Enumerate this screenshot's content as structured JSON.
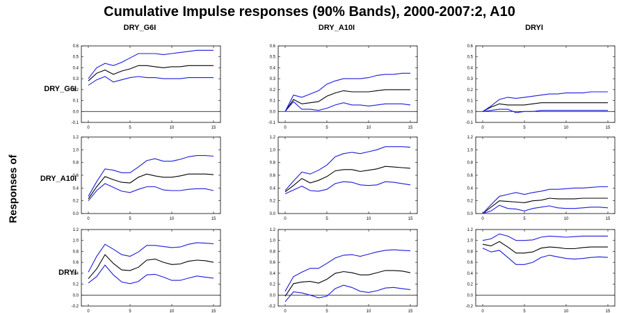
{
  "title": "Cumulative Impulse responses (90% Bands), 2000-2007:2, A10",
  "side_label": "Responses of",
  "column_titles": [
    "DRY_G6I",
    "DRY_A10I",
    "DRYI"
  ],
  "row_labels": [
    "DRY_G6I",
    "DRY_A10I",
    "DRYI"
  ],
  "colors": {
    "point": "#000000",
    "band": "#1a1adc",
    "frame": "#000000"
  },
  "chart_data": [
    {
      "type": "line",
      "response": "DRY_G6I",
      "shock": "DRY_G6I",
      "x": [
        0,
        1,
        2,
        3,
        4,
        5,
        6,
        7,
        8,
        9,
        10,
        11,
        12,
        13,
        14,
        15
      ],
      "xticks": [
        0,
        5,
        10,
        15
      ],
      "ylim": [
        -0.1,
        0.6
      ],
      "yticks": [
        "-0.1",
        "0.0",
        "0.1",
        "0.2",
        "0.3",
        "0.4",
        "0.5",
        "0.6"
      ],
      "series": [
        {
          "values": [
            0.28,
            0.35,
            0.38,
            0.34,
            0.37,
            0.39,
            0.42,
            0.42,
            0.41,
            0.4,
            0.41,
            0.41,
            0.42,
            0.42,
            0.42,
            0.42
          ]
        },
        {
          "values": [
            0.3,
            0.4,
            0.44,
            0.42,
            0.45,
            0.49,
            0.53,
            0.53,
            0.53,
            0.52,
            0.53,
            0.54,
            0.55,
            0.56,
            0.56,
            0.56
          ]
        },
        {
          "values": [
            0.24,
            0.29,
            0.32,
            0.27,
            0.29,
            0.31,
            0.32,
            0.31,
            0.31,
            0.3,
            0.3,
            0.3,
            0.31,
            0.31,
            0.31,
            0.31
          ]
        }
      ]
    },
    {
      "type": "line",
      "response": "DRY_G6I",
      "shock": "DRY_A10I",
      "x": [
        0,
        1,
        2,
        3,
        4,
        5,
        6,
        7,
        8,
        9,
        10,
        11,
        12,
        13,
        14,
        15
      ],
      "xticks": [
        0,
        5,
        10,
        15
      ],
      "ylim": [
        -0.1,
        0.6
      ],
      "yticks": [
        "-0.1",
        "0.0",
        "0.1",
        "0.2",
        "0.3",
        "0.4",
        "0.5",
        "0.6"
      ],
      "series": [
        {
          "values": [
            0.0,
            0.11,
            0.07,
            0.08,
            0.09,
            0.14,
            0.17,
            0.19,
            0.18,
            0.18,
            0.18,
            0.19,
            0.2,
            0.2,
            0.2,
            0.2
          ]
        },
        {
          "values": [
            0.0,
            0.15,
            0.13,
            0.16,
            0.19,
            0.25,
            0.28,
            0.3,
            0.3,
            0.3,
            0.31,
            0.33,
            0.34,
            0.34,
            0.35,
            0.35
          ]
        },
        {
          "values": [
            0.0,
            0.09,
            0.02,
            0.02,
            0.01,
            0.03,
            0.06,
            0.08,
            0.06,
            0.06,
            0.05,
            0.06,
            0.07,
            0.07,
            0.07,
            0.06
          ]
        }
      ]
    },
    {
      "type": "line",
      "response": "DRY_G6I",
      "shock": "DRYI",
      "x": [
        0,
        1,
        2,
        3,
        4,
        5,
        6,
        7,
        8,
        9,
        10,
        11,
        12,
        13,
        14,
        15
      ],
      "xticks": [
        0,
        5,
        10,
        15
      ],
      "ylim": [
        -0.1,
        0.6
      ],
      "yticks": [
        "-0.1",
        "0.0",
        "0.1",
        "0.2",
        "0.3",
        "0.4",
        "0.5",
        "0.6"
      ],
      "series": [
        {
          "values": [
            0.0,
            0.04,
            0.07,
            0.06,
            0.06,
            0.06,
            0.07,
            0.08,
            0.08,
            0.08,
            0.08,
            0.08,
            0.08,
            0.08,
            0.08,
            0.08
          ]
        },
        {
          "values": [
            0.0,
            0.05,
            0.11,
            0.13,
            0.12,
            0.13,
            0.14,
            0.15,
            0.16,
            0.16,
            0.17,
            0.17,
            0.17,
            0.18,
            0.18,
            0.18
          ]
        },
        {
          "values": [
            0.0,
            0.01,
            0.02,
            0.02,
            -0.01,
            0.0,
            0.0,
            0.01,
            0.01,
            0.01,
            0.01,
            0.01,
            0.01,
            0.01,
            0.01,
            0.01
          ]
        }
      ]
    },
    {
      "type": "line",
      "response": "DRY_A10I",
      "shock": "DRY_G6I",
      "x": [
        0,
        1,
        2,
        3,
        4,
        5,
        6,
        7,
        8,
        9,
        10,
        11,
        12,
        13,
        14,
        15
      ],
      "xticks": [
        0,
        5,
        10,
        15
      ],
      "ylim": [
        0.0,
        1.2
      ],
      "yticks": [
        "0.0",
        "0.2",
        "0.4",
        "0.6",
        "0.8",
        "1.0",
        "1.2"
      ],
      "series": [
        {
          "values": [
            0.23,
            0.42,
            0.58,
            0.53,
            0.49,
            0.48,
            0.57,
            0.62,
            0.59,
            0.57,
            0.57,
            0.59,
            0.62,
            0.62,
            0.62,
            0.61
          ]
        },
        {
          "values": [
            0.27,
            0.5,
            0.7,
            0.68,
            0.64,
            0.64,
            0.73,
            0.83,
            0.86,
            0.82,
            0.82,
            0.85,
            0.89,
            0.91,
            0.91,
            0.9
          ]
        },
        {
          "values": [
            0.2,
            0.36,
            0.47,
            0.41,
            0.35,
            0.33,
            0.38,
            0.42,
            0.42,
            0.37,
            0.36,
            0.36,
            0.38,
            0.39,
            0.39,
            0.36
          ]
        }
      ]
    },
    {
      "type": "line",
      "response": "DRY_A10I",
      "shock": "DRY_A10I",
      "x": [
        0,
        1,
        2,
        3,
        4,
        5,
        6,
        7,
        8,
        9,
        10,
        11,
        12,
        13,
        14,
        15
      ],
      "xticks": [
        0,
        5,
        10,
        15
      ],
      "ylim": [
        0.0,
        1.2
      ],
      "yticks": [
        "0.0",
        "0.2",
        "0.4",
        "0.6",
        "0.8",
        "1.0",
        "1.2"
      ],
      "series": [
        {
          "values": [
            0.34,
            0.44,
            0.55,
            0.48,
            0.52,
            0.58,
            0.67,
            0.69,
            0.69,
            0.66,
            0.68,
            0.7,
            0.74,
            0.73,
            0.72,
            0.71
          ]
        },
        {
          "values": [
            0.36,
            0.51,
            0.65,
            0.62,
            0.68,
            0.76,
            0.89,
            0.94,
            0.96,
            0.94,
            0.97,
            1.0,
            1.05,
            1.05,
            1.05,
            1.04
          ]
        },
        {
          "values": [
            0.31,
            0.37,
            0.43,
            0.36,
            0.35,
            0.38,
            0.47,
            0.5,
            0.49,
            0.45,
            0.44,
            0.45,
            0.5,
            0.49,
            0.47,
            0.45
          ]
        }
      ]
    },
    {
      "type": "line",
      "response": "DRY_A10I",
      "shock": "DRYI",
      "x": [
        0,
        1,
        2,
        3,
        4,
        5,
        6,
        7,
        8,
        9,
        10,
        11,
        12,
        13,
        14,
        15
      ],
      "xticks": [
        0,
        5,
        10,
        15
      ],
      "ylim": [
        0.0,
        1.2
      ],
      "yticks": [
        "0.0",
        "0.2",
        "0.4",
        "0.6",
        "0.8",
        "1.0",
        "1.2"
      ],
      "series": [
        {
          "values": [
            0.0,
            0.1,
            0.2,
            0.19,
            0.18,
            0.17,
            0.2,
            0.21,
            0.24,
            0.23,
            0.23,
            0.23,
            0.24,
            0.24,
            0.24,
            0.24
          ]
        },
        {
          "values": [
            0.0,
            0.14,
            0.27,
            0.3,
            0.33,
            0.3,
            0.33,
            0.35,
            0.38,
            0.38,
            0.39,
            0.4,
            0.4,
            0.41,
            0.42,
            0.42
          ]
        },
        {
          "values": [
            0.0,
            0.04,
            0.13,
            0.08,
            0.07,
            0.04,
            0.08,
            0.1,
            0.12,
            0.09,
            0.08,
            0.08,
            0.09,
            0.1,
            0.1,
            0.09
          ]
        }
      ]
    },
    {
      "type": "line",
      "response": "DRYI",
      "shock": "DRY_G6I",
      "x": [
        0,
        1,
        2,
        3,
        4,
        5,
        6,
        7,
        8,
        9,
        10,
        11,
        12,
        13,
        14,
        15
      ],
      "xticks": [
        0,
        5,
        10,
        15
      ],
      "ylim": [
        -0.2,
        1.2
      ],
      "yticks": [
        "-0.2",
        "0.0",
        "0.2",
        "0.4",
        "0.6",
        "0.8",
        "1.0",
        "1.2"
      ],
      "series": [
        {
          "values": [
            0.3,
            0.48,
            0.74,
            0.58,
            0.46,
            0.45,
            0.51,
            0.64,
            0.66,
            0.6,
            0.56,
            0.57,
            0.62,
            0.64,
            0.63,
            0.6
          ]
        },
        {
          "values": [
            0.42,
            0.71,
            0.93,
            0.84,
            0.74,
            0.71,
            0.79,
            0.91,
            0.91,
            0.89,
            0.87,
            0.88,
            0.93,
            0.96,
            0.95,
            0.94
          ]
        },
        {
          "values": [
            0.22,
            0.34,
            0.55,
            0.37,
            0.24,
            0.21,
            0.25,
            0.37,
            0.38,
            0.33,
            0.27,
            0.27,
            0.31,
            0.35,
            0.33,
            0.31
          ]
        }
      ]
    },
    {
      "type": "line",
      "response": "DRYI",
      "shock": "DRY_A10I",
      "x": [
        0,
        1,
        2,
        3,
        4,
        5,
        6,
        7,
        8,
        9,
        10,
        11,
        12,
        13,
        14,
        15
      ],
      "xticks": [
        0,
        5,
        10,
        15
      ],
      "ylim": [
        -0.2,
        1.2
      ],
      "yticks": [
        "-0.2",
        "0.0",
        "0.2",
        "0.4",
        "0.6",
        "0.8",
        "1.0",
        "1.2"
      ],
      "series": [
        {
          "values": [
            -0.02,
            0.21,
            0.24,
            0.25,
            0.22,
            0.29,
            0.4,
            0.43,
            0.41,
            0.37,
            0.37,
            0.41,
            0.45,
            0.45,
            0.44,
            0.41
          ]
        },
        {
          "values": [
            0.07,
            0.34,
            0.42,
            0.49,
            0.49,
            0.58,
            0.68,
            0.73,
            0.74,
            0.71,
            0.75,
            0.79,
            0.82,
            0.83,
            0.82,
            0.81
          ]
        },
        {
          "values": [
            -0.12,
            0.06,
            0.04,
            0.0,
            -0.05,
            -0.02,
            0.12,
            0.18,
            0.14,
            0.07,
            0.05,
            0.08,
            0.13,
            0.14,
            0.12,
            0.1
          ]
        }
      ]
    },
    {
      "type": "line",
      "response": "DRYI",
      "shock": "DRYI",
      "x": [
        0,
        1,
        2,
        3,
        4,
        5,
        6,
        7,
        8,
        9,
        10,
        11,
        12,
        13,
        14,
        15
      ],
      "xticks": [
        0,
        5,
        10,
        15
      ],
      "ylim": [
        -0.2,
        1.2
      ],
      "yticks": [
        "-0.2",
        "0.0",
        "0.2",
        "0.4",
        "0.6",
        "0.8",
        "1.0",
        "1.2"
      ],
      "series": [
        {
          "values": [
            0.93,
            0.9,
            0.98,
            0.88,
            0.77,
            0.77,
            0.79,
            0.86,
            0.88,
            0.87,
            0.85,
            0.85,
            0.87,
            0.88,
            0.88,
            0.88
          ]
        },
        {
          "values": [
            1.0,
            1.03,
            1.12,
            1.08,
            1.0,
            1.0,
            1.01,
            1.06,
            1.08,
            1.07,
            1.06,
            1.07,
            1.08,
            1.08,
            1.08,
            1.08
          ]
        },
        {
          "values": [
            0.86,
            0.79,
            0.82,
            0.69,
            0.56,
            0.56,
            0.6,
            0.69,
            0.73,
            0.7,
            0.67,
            0.66,
            0.67,
            0.69,
            0.7,
            0.69
          ]
        }
      ]
    }
  ]
}
